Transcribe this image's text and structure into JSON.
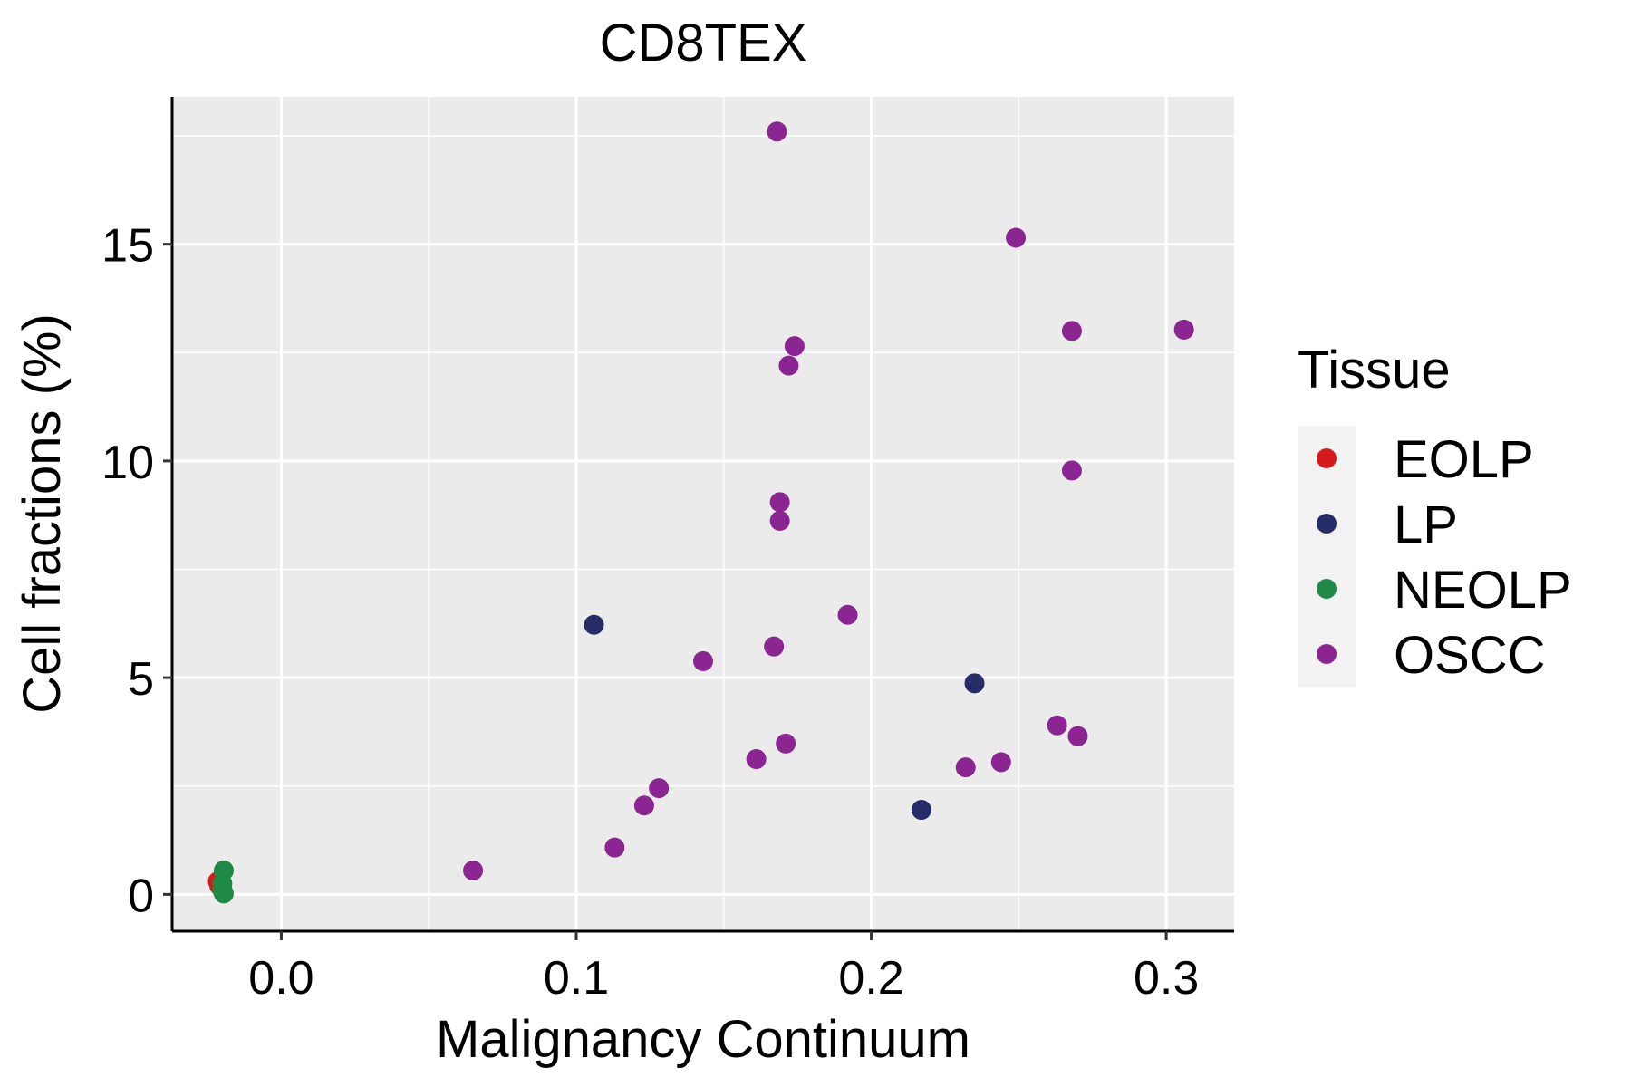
{
  "chart_data": {
    "type": "scatter",
    "title": "CD8TEX",
    "xlabel": "Malignancy Continuum",
    "ylabel": "Cell fractions (%)",
    "xlim": [
      -0.037,
      0.323
    ],
    "ylim": [
      -0.85,
      18.4
    ],
    "x_ticks": [
      0.0,
      0.1,
      0.2,
      0.3
    ],
    "x_tick_labels": [
      "0.0",
      "0.1",
      "0.2",
      "0.3"
    ],
    "y_ticks": [
      0,
      5,
      10,
      15
    ],
    "y_tick_labels": [
      "0",
      "5",
      "10",
      "15"
    ],
    "grid": true,
    "legend": {
      "title": "Tissue",
      "position": "right"
    },
    "series": [
      {
        "name": "EOLP",
        "color": "#d7191c",
        "points": [
          [
            -0.0215,
            0.3
          ],
          [
            -0.021,
            0.2
          ]
        ]
      },
      {
        "name": "LP",
        "color": "#262c68",
        "points": [
          [
            0.106,
            6.22
          ],
          [
            0.217,
            1.95
          ],
          [
            0.235,
            4.87
          ]
        ]
      },
      {
        "name": "NEOLP",
        "color": "#1f8a45",
        "points": [
          [
            -0.0195,
            0.55
          ],
          [
            -0.02,
            0.1
          ],
          [
            -0.0195,
            0.02
          ],
          [
            -0.02,
            0.25
          ]
        ]
      },
      {
        "name": "OSCC",
        "color": "#8b2591",
        "points": [
          [
            0.065,
            0.55
          ],
          [
            0.113,
            1.08
          ],
          [
            0.123,
            2.05
          ],
          [
            0.128,
            2.45
          ],
          [
            0.143,
            5.38
          ],
          [
            0.161,
            3.12
          ],
          [
            0.167,
            5.72
          ],
          [
            0.168,
            17.6
          ],
          [
            0.169,
            9.05
          ],
          [
            0.169,
            8.62
          ],
          [
            0.171,
            3.48
          ],
          [
            0.172,
            12.2
          ],
          [
            0.174,
            12.65
          ],
          [
            0.192,
            6.45
          ],
          [
            0.232,
            2.93
          ],
          [
            0.244,
            3.05
          ],
          [
            0.249,
            15.15
          ],
          [
            0.263,
            3.9
          ],
          [
            0.268,
            13.0
          ],
          [
            0.268,
            9.78
          ],
          [
            0.27,
            3.65
          ],
          [
            0.306,
            13.03
          ]
        ]
      }
    ]
  }
}
